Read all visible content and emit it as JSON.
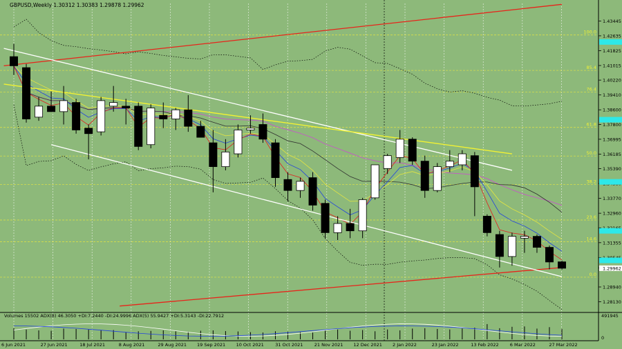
{
  "header": {
    "title": "GBPUSD,Weekly  1.30312 1.30383 1.29878 1.29962"
  },
  "indicator": {
    "label": "Volumes 15502  ADX(8) 46.3050 +DI:7.2440 -DI:24.9996  ADX(5) 55.9427 +DI:5.3143 -DI:22.7912"
  },
  "colors": {
    "background": "#8db97a",
    "bull_candle": "#ffffff",
    "bear_candle": "#000000",
    "red_channel": "#e8231a",
    "white_channel": "#ffffff",
    "yellow_trend": "#f2f233",
    "fib_level": "#e6e640",
    "fib_label": "#f2f233",
    "cyan_marker": "#2ee8e8",
    "ma_red": "#e02020",
    "ma_blue": "#2040e0",
    "ma_yellow": "#e6e640",
    "ma_magenta": "#c060c0",
    "ma_dark": "#303030",
    "bollinger": "#000000"
  },
  "chart_data": {
    "type": "candlestick",
    "symbol": "GBPUSD",
    "timeframe": "Weekly",
    "ohlc_current": {
      "open": 1.30312,
      "high": 1.30383,
      "low": 1.29878,
      "close": 1.29962
    },
    "ylim": [
      1.277,
      1.444
    ],
    "price_ticks": [
      "1.43445",
      "1.42635",
      "1.41825",
      "1.41015",
      "1.40220",
      "1.39410",
      "1.38600",
      "1.37800",
      "1.36995",
      "1.36185",
      "1.35390",
      "1.34580",
      "1.33770",
      "1.32960",
      "1.32165",
      "1.31355",
      "1.30545",
      "1.29975",
      "1.28940",
      "1.28130"
    ],
    "current_price_label": "1.29962",
    "cyan_markers": [
      1.423,
      1.3806,
      1.3467,
      1.32,
      1.3039
    ],
    "date_labels": [
      "6 Jun 2021",
      "27 Jun 2021",
      "18 Jul 2021",
      "8 Aug 2021",
      "29 Aug 2021",
      "19 Sep 2021",
      "10 Oct 2021",
      "31 Oct 2021",
      "21 Nov 2021",
      "12 Dec 2021",
      "2 Jan 2022",
      "23 Jan 2022",
      "13 Feb 2022",
      "6 Mar 2022",
      "27 Mar 2022"
    ],
    "fib_levels": [
      {
        "label": "100.0",
        "price": 1.4268
      },
      {
        "label": "85.4",
        "price": 1.4075
      },
      {
        "label": "76.4",
        "price": 1.3956
      },
      {
        "label": "61.8",
        "price": 1.3764
      },
      {
        "label": "50.0",
        "price": 1.3608
      },
      {
        "label": "38.2",
        "price": 1.3452
      },
      {
        "label": "23.6",
        "price": 1.3259
      },
      {
        "label": "14.6",
        "price": 1.314
      },
      {
        "label": "0.0",
        "price": 1.2947
      }
    ],
    "candles": [
      {
        "o": 1.415,
        "h": 1.422,
        "l": 1.405,
        "c": 1.41
      },
      {
        "o": 1.409,
        "h": 1.411,
        "l": 1.379,
        "c": 1.381
      },
      {
        "o": 1.382,
        "h": 1.393,
        "l": 1.38,
        "c": 1.388
      },
      {
        "o": 1.388,
        "h": 1.396,
        "l": 1.386,
        "c": 1.385
      },
      {
        "o": 1.385,
        "h": 1.399,
        "l": 1.378,
        "c": 1.391
      },
      {
        "o": 1.39,
        "h": 1.392,
        "l": 1.373,
        "c": 1.375
      },
      {
        "o": 1.376,
        "h": 1.378,
        "l": 1.359,
        "c": 1.373
      },
      {
        "o": 1.374,
        "h": 1.393,
        "l": 1.372,
        "c": 1.391
      },
      {
        "o": 1.388,
        "h": 1.399,
        "l": 1.385,
        "c": 1.39
      },
      {
        "o": 1.388,
        "h": 1.392,
        "l": 1.378,
        "c": 1.387
      },
      {
        "o": 1.388,
        "h": 1.39,
        "l": 1.364,
        "c": 1.366
      },
      {
        "o": 1.367,
        "h": 1.389,
        "l": 1.365,
        "c": 1.387
      },
      {
        "o": 1.383,
        "h": 1.39,
        "l": 1.376,
        "c": 1.381
      },
      {
        "o": 1.381,
        "h": 1.387,
        "l": 1.375,
        "c": 1.386
      },
      {
        "o": 1.386,
        "h": 1.394,
        "l": 1.374,
        "c": 1.377
      },
      {
        "o": 1.377,
        "h": 1.38,
        "l": 1.372,
        "c": 1.371
      },
      {
        "o": 1.368,
        "h": 1.375,
        "l": 1.341,
        "c": 1.355
      },
      {
        "o": 1.355,
        "h": 1.37,
        "l": 1.353,
        "c": 1.363
      },
      {
        "o": 1.362,
        "h": 1.378,
        "l": 1.36,
        "c": 1.375
      },
      {
        "o": 1.375,
        "h": 1.383,
        "l": 1.373,
        "c": 1.376
      },
      {
        "o": 1.378,
        "h": 1.384,
        "l": 1.368,
        "c": 1.37
      },
      {
        "o": 1.368,
        "h": 1.37,
        "l": 1.344,
        "c": 1.349
      },
      {
        "o": 1.348,
        "h": 1.352,
        "l": 1.336,
        "c": 1.342
      },
      {
        "o": 1.342,
        "h": 1.349,
        "l": 1.338,
        "c": 1.347
      },
      {
        "o": 1.349,
        "h": 1.352,
        "l": 1.331,
        "c": 1.334
      },
      {
        "o": 1.335,
        "h": 1.337,
        "l": 1.316,
        "c": 1.319
      },
      {
        "o": 1.319,
        "h": 1.328,
        "l": 1.315,
        "c": 1.324
      },
      {
        "o": 1.324,
        "h": 1.332,
        "l": 1.316,
        "c": 1.32
      },
      {
        "o": 1.32,
        "h": 1.338,
        "l": 1.316,
        "c": 1.337
      },
      {
        "o": 1.338,
        "h": 1.356,
        "l": 1.337,
        "c": 1.356
      },
      {
        "o": 1.354,
        "h": 1.362,
        "l": 1.351,
        "c": 1.361
      },
      {
        "o": 1.36,
        "h": 1.375,
        "l": 1.357,
        "c": 1.37
      },
      {
        "o": 1.37,
        "h": 1.371,
        "l": 1.356,
        "c": 1.358
      },
      {
        "o": 1.358,
        "h": 1.361,
        "l": 1.338,
        "c": 1.342
      },
      {
        "o": 1.342,
        "h": 1.357,
        "l": 1.341,
        "c": 1.355
      },
      {
        "o": 1.355,
        "h": 1.364,
        "l": 1.352,
        "c": 1.358
      },
      {
        "o": 1.356,
        "h": 1.364,
        "l": 1.353,
        "c": 1.362
      },
      {
        "o": 1.361,
        "h": 1.363,
        "l": 1.328,
        "c": 1.344
      },
      {
        "o": 1.328,
        "h": 1.329,
        "l": 1.317,
        "c": 1.319
      },
      {
        "o": 1.318,
        "h": 1.32,
        "l": 1.3,
        "c": 1.306
      },
      {
        "o": 1.306,
        "h": 1.319,
        "l": 1.301,
        "c": 1.317
      },
      {
        "o": 1.316,
        "h": 1.32,
        "l": 1.308,
        "c": 1.317
      },
      {
        "o": 1.317,
        "h": 1.318,
        "l": 1.308,
        "c": 1.311
      },
      {
        "o": 1.311,
        "h": 1.312,
        "l": 1.299,
        "c": 1.303
      },
      {
        "o": 1.3031,
        "h": 1.3038,
        "l": 1.2988,
        "c": 1.2996
      }
    ],
    "volumes": [
      0.62,
      0.55,
      0.5,
      0.48,
      0.6,
      0.58,
      0.55,
      0.5,
      0.52,
      0.4,
      0.45,
      0.47,
      0.5,
      0.45,
      0.43,
      0.48,
      0.5,
      0.46,
      0.44,
      0.4,
      0.38,
      0.45,
      0.43,
      0.4,
      0.38,
      0.5,
      0.55,
      0.48,
      0.52,
      0.45,
      0.55,
      0.5,
      0.6,
      0.62,
      0.58,
      0.55,
      0.6,
      0.65,
      0.85,
      0.62,
      0.7,
      0.72,
      0.6,
      0.68,
      0.58
    ],
    "indicator_ticks": [
      "491945",
      "0"
    ]
  }
}
